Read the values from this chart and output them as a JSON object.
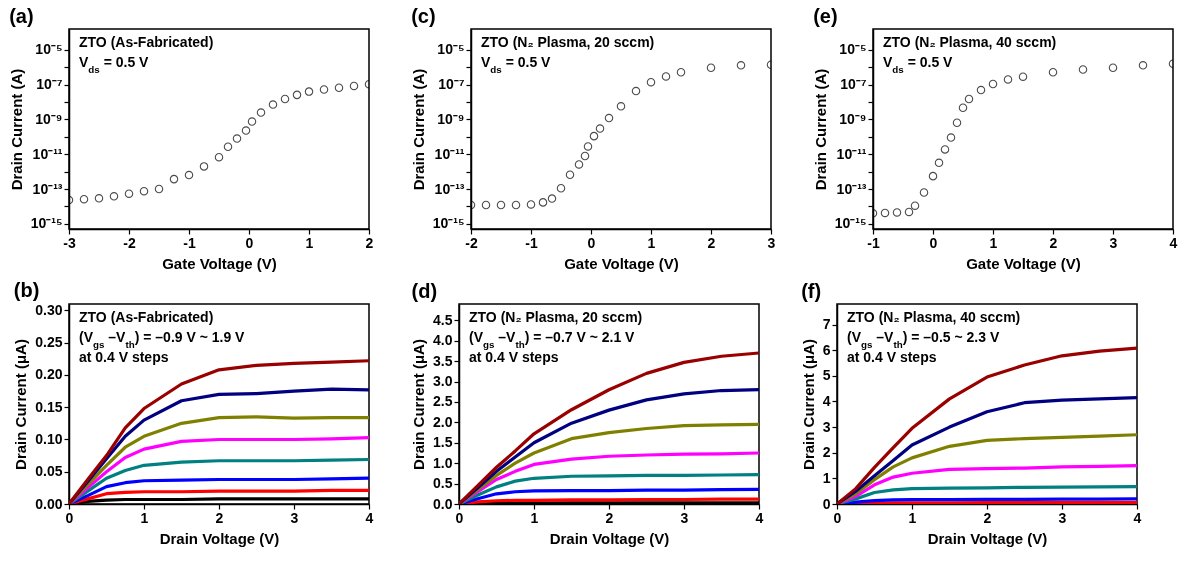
{
  "chart_data": [
    {
      "type": "scatter",
      "title": "(a)",
      "xlabel": "Gate Voltage (V)",
      "ylabel": "Drain Current (A)",
      "annotations": [
        "ZTO (As-Fabricated)",
        "V$_{ds}$ = 0.5 V"
      ],
      "log": true,
      "marker": "circle",
      "xlim": [
        -3,
        2
      ],
      "xticks": [
        -3,
        -2,
        -1,
        0,
        1,
        2
      ],
      "ylim": [
        5e-16,
        0.00016
      ],
      "yticks": [
        {
          "value": 1e-15,
          "label": "10⁻¹⁵"
        },
        {
          "value": 1e-14,
          "label": null
        },
        {
          "value": 1e-13,
          "label": "10⁻¹³"
        },
        {
          "value": 1e-12,
          "label": null
        },
        {
          "value": 1e-11,
          "label": "10⁻¹¹"
        },
        {
          "value": 1e-10,
          "label": null
        },
        {
          "value": 1e-09,
          "label": "10⁻⁹"
        },
        {
          "value": 1e-08,
          "label": null
        },
        {
          "value": 1e-07,
          "label": "10⁻⁷"
        },
        {
          "value": 1e-06,
          "label": null
        },
        {
          "value": 1e-05,
          "label": "10⁻⁵"
        }
      ],
      "series": [
        {
          "color": "#000000",
          "x": [
            -3,
            -2.75,
            -2.5,
            -2.25,
            -2,
            -1.75,
            -1.5,
            -1.25,
            -1,
            -0.75,
            -0.5,
            -0.35,
            -0.2,
            -0.05,
            0.05,
            0.2,
            0.4,
            0.6,
            0.8,
            1,
            1.25,
            1.5,
            1.75,
            2
          ],
          "values": [
            2.3e-14,
            2.6e-14,
            2.9e-14,
            3.8e-14,
            5.4e-14,
            7.5e-14,
            1e-13,
            3.7e-13,
            6.3e-13,
            2e-12,
            6.8e-12,
            2.7e-11,
            8e-11,
            2.3e-10,
            7.6e-10,
            2.5e-09,
            7.2e-09,
            1.5e-08,
            2.6e-08,
            4e-08,
            5.3e-08,
            6.7e-08,
            8.5e-08,
            1.07e-07
          ]
        }
      ]
    },
    {
      "type": "scatter",
      "title": "(c)",
      "xlabel": "Gate Voltage (V)",
      "ylabel": "Drain Current (A)",
      "annotations": [
        "ZTO (N₂ Plasma, 20 sccm)",
        "V$_{ds}$ = 0.5 V"
      ],
      "log": true,
      "marker": "circle",
      "xlim": [
        -2,
        3
      ],
      "xticks": [
        -2,
        -1,
        0,
        1,
        2,
        3
      ],
      "ylim": [
        5e-16,
        0.00016
      ],
      "yticks": [
        {
          "value": 1e-15,
          "label": "10⁻¹⁵"
        },
        {
          "value": 1e-14,
          "label": null
        },
        {
          "value": 1e-13,
          "label": "10⁻¹³"
        },
        {
          "value": 1e-12,
          "label": null
        },
        {
          "value": 1e-11,
          "label": "10⁻¹¹"
        },
        {
          "value": 1e-10,
          "label": null
        },
        {
          "value": 1e-09,
          "label": "10⁻⁹"
        },
        {
          "value": 1e-08,
          "label": null
        },
        {
          "value": 1e-07,
          "label": "10⁻⁷"
        },
        {
          "value": 1e-06,
          "label": null
        },
        {
          "value": 1e-05,
          "label": "10⁻⁵"
        }
      ],
      "series": [
        {
          "color": "#000000",
          "x": [
            -2,
            -1.75,
            -1.5,
            -1.25,
            -1,
            -0.8,
            -0.65,
            -0.5,
            -0.35,
            -0.2,
            -0.1,
            -0.05,
            0.05,
            0.15,
            0.3,
            0.5,
            0.75,
            1,
            1.25,
            1.5,
            2,
            2.5,
            3
          ],
          "values": [
            1.2e-14,
            1.2e-14,
            1.2e-14,
            1.2e-14,
            1.3e-14,
            1.7e-14,
            2.8e-14,
            1.1e-13,
            6.6e-13,
            2.6e-12,
            7.9e-12,
            2.8e-11,
            1.1e-10,
            3e-10,
            1.2e-09,
            5.7e-09,
            4.3e-08,
            1.4e-07,
            3e-07,
            5.2e-07,
            9.4e-07,
            1.3e-06,
            1.4e-06
          ]
        }
      ]
    },
    {
      "type": "scatter",
      "title": "(e)",
      "xlabel": "Gate Voltage (V)",
      "ylabel": "Drain Current (A)",
      "annotations": [
        "ZTO (N₂ Plasma, 40 sccm)",
        "V$_{ds}$ = 0.5 V"
      ],
      "log": true,
      "marker": "circle",
      "xlim": [
        -1,
        4
      ],
      "xticks": [
        -1,
        0,
        1,
        2,
        3,
        4
      ],
      "ylim": [
        5e-16,
        0.00016
      ],
      "yticks": [
        {
          "value": 1e-15,
          "label": "10⁻¹⁵"
        },
        {
          "value": 1e-14,
          "label": null
        },
        {
          "value": 1e-13,
          "label": "10⁻¹³"
        },
        {
          "value": 1e-12,
          "label": null
        },
        {
          "value": 1e-11,
          "label": "10⁻¹¹"
        },
        {
          "value": 1e-10,
          "label": null
        },
        {
          "value": 1e-09,
          "label": "10⁻⁹"
        },
        {
          "value": 1e-08,
          "label": null
        },
        {
          "value": 1e-07,
          "label": "10⁻⁷"
        },
        {
          "value": 1e-06,
          "label": null
        },
        {
          "value": 1e-05,
          "label": "10⁻⁵"
        }
      ],
      "series": [
        {
          "color": "#000000",
          "x": [
            -1,
            -0.8,
            -0.6,
            -0.4,
            -0.3,
            -0.15,
            0,
            0.1,
            0.2,
            0.3,
            0.4,
            0.5,
            0.6,
            0.8,
            1,
            1.25,
            1.5,
            2,
            2.5,
            3,
            3.5,
            4
          ],
          "values": [
            4e-15,
            4.2e-15,
            4.5e-15,
            4.8e-15,
            1.1e-14,
            6.3e-14,
            5.5e-13,
            3.2e-12,
            1.9e-11,
            9.1e-11,
            6.5e-10,
            4.7e-09,
            1.5e-08,
            4.9e-08,
            1.1e-07,
            2e-07,
            2.9e-07,
            5.2e-07,
            7.5e-07,
            9.4e-07,
            1.3e-06,
            1.6e-06
          ]
        }
      ]
    },
    {
      "type": "line",
      "title": "(b)",
      "xlabel": "Drain Voltage (V)",
      "ylabel": "Drain Current (μA)",
      "annotations": [
        "ZTO (As-Fabricated)",
        "(V$_{gs}$ –V$_{th}$) = –0.9 V ~ 1.9 V",
        "at 0.4 V steps"
      ],
      "xlim": [
        0,
        4
      ],
      "xticks": [
        0,
        1,
        2,
        3,
        4
      ],
      "ylim": [
        0,
        0.31
      ],
      "yticks": [
        {
          "value": 0,
          "label": "0.00"
        },
        0.05,
        {
          "value": 0.1,
          "label": "0.10"
        },
        0.15,
        {
          "value": 0.2,
          "label": "0.20"
        },
        0.25,
        {
          "value": 0.3,
          "label": "0.30"
        }
      ],
      "x": [
        0,
        0.25,
        0.5,
        0.75,
        1,
        1.5,
        2,
        2.5,
        3,
        3.5,
        4
      ],
      "series": [
        {
          "color": "#000000",
          "values": [
            0,
            0.004,
            0.006,
            0.007,
            0.007,
            0.007,
            0.008,
            0.008,
            0.008,
            0.008,
            0.008
          ]
        },
        {
          "color": "#ff0000",
          "values": [
            0,
            0.008,
            0.016,
            0.018,
            0.019,
            0.019,
            0.02,
            0.02,
            0.02,
            0.021,
            0.021
          ]
        },
        {
          "color": "#0000ff",
          "values": [
            0,
            0.013,
            0.027,
            0.033,
            0.036,
            0.037,
            0.038,
            0.038,
            0.038,
            0.039,
            0.04
          ]
        },
        {
          "color": "#008080",
          "values": [
            0,
            0.02,
            0.04,
            0.052,
            0.06,
            0.065,
            0.067,
            0.067,
            0.067,
            0.068,
            0.069
          ]
        },
        {
          "color": "#ff00ff",
          "values": [
            0,
            0.025,
            0.05,
            0.072,
            0.085,
            0.097,
            0.1,
            0.1,
            0.1,
            0.101,
            0.103
          ]
        },
        {
          "color": "#808000",
          "values": [
            0,
            0.03,
            0.06,
            0.088,
            0.105,
            0.125,
            0.134,
            0.135,
            0.133,
            0.134,
            0.134
          ]
        },
        {
          "color": "#000080",
          "values": [
            0,
            0.035,
            0.07,
            0.105,
            0.13,
            0.16,
            0.17,
            0.171,
            0.175,
            0.178,
            0.177
          ]
        },
        {
          "color": "#990000",
          "values": [
            0,
            0.038,
            0.075,
            0.118,
            0.148,
            0.186,
            0.208,
            0.215,
            0.218,
            0.22,
            0.222
          ]
        }
      ]
    },
    {
      "type": "line",
      "title": "(d)",
      "xlabel": "Drain Voltage (V)",
      "ylabel": "Drain Current (μA)",
      "annotations": [
        "ZTO (N₂ Plasma, 20 sccm)",
        "(V$_{gs}$ –V$_{th}$) = –0.7 V ~ 2.1 V",
        "at 0.4 V steps"
      ],
      "xlim": [
        0,
        4
      ],
      "xticks": [
        0,
        1,
        2,
        3,
        4
      ],
      "ylim": [
        0,
        4.9
      ],
      "yticks": [
        {
          "value": 0,
          "label": "0.0"
        },
        0.5,
        {
          "value": 1,
          "label": "1.0"
        },
        1.5,
        {
          "value": 2,
          "label": "2.0"
        },
        2.5,
        {
          "value": 3,
          "label": "3.0"
        },
        3.5,
        {
          "value": 4,
          "label": "4.0"
        },
        4.5
      ],
      "x": [
        0,
        0.25,
        0.5,
        0.75,
        1,
        1.5,
        2,
        2.5,
        3,
        3.5,
        4
      ],
      "series": [
        {
          "color": "#000000",
          "values": [
            0,
            0.01,
            0.02,
            0.02,
            0.02,
            0.03,
            0.03,
            0.03,
            0.03,
            0.03,
            0.03
          ]
        },
        {
          "color": "#ff0000",
          "values": [
            0,
            0.05,
            0.08,
            0.09,
            0.09,
            0.1,
            0.1,
            0.11,
            0.11,
            0.12,
            0.12
          ]
        },
        {
          "color": "#0000ff",
          "values": [
            0,
            0.13,
            0.25,
            0.3,
            0.32,
            0.33,
            0.33,
            0.34,
            0.34,
            0.35,
            0.36
          ]
        },
        {
          "color": "#008080",
          "values": [
            0,
            0.22,
            0.42,
            0.56,
            0.63,
            0.68,
            0.69,
            0.7,
            0.7,
            0.71,
            0.72
          ]
        },
        {
          "color": "#ff00ff",
          "values": [
            0,
            0.3,
            0.6,
            0.8,
            0.97,
            1.1,
            1.17,
            1.2,
            1.22,
            1.23,
            1.25
          ]
        },
        {
          "color": "#808000",
          "values": [
            0,
            0.35,
            0.7,
            1.0,
            1.25,
            1.6,
            1.75,
            1.85,
            1.92,
            1.94,
            1.95
          ]
        },
        {
          "color": "#000080",
          "values": [
            0,
            0.4,
            0.8,
            1.15,
            1.5,
            1.98,
            2.3,
            2.55,
            2.7,
            2.78,
            2.8
          ]
        },
        {
          "color": "#990000",
          "values": [
            0,
            0.45,
            0.9,
            1.3,
            1.72,
            2.31,
            2.8,
            3.2,
            3.47,
            3.62,
            3.7
          ]
        }
      ]
    },
    {
      "type": "line",
      "title": "(f)",
      "xlabel": "Drain Voltage (V)",
      "ylabel": "Drain Current (μA)",
      "annotations": [
        "ZTO (N₂ Plasma, 40 sccm)",
        "(V$_{gs}$ –V$_{th}$) = –0.5 ~ 2.3 V",
        "at 0.4 V steps"
      ],
      "xlim": [
        0,
        4
      ],
      "xticks": [
        0,
        1,
        2,
        3,
        4
      ],
      "ylim": [
        0,
        7.8
      ],
      "yticks": [
        0,
        1,
        2,
        3,
        4,
        5,
        6,
        7
      ],
      "x": [
        0,
        0.25,
        0.5,
        0.75,
        1,
        1.5,
        2,
        2.5,
        3,
        3.5,
        4
      ],
      "series": [
        {
          "color": "#ff0000",
          "values": [
            0,
            0.02,
            0.03,
            0.04,
            0.04,
            0.04,
            0.05,
            0.05,
            0.05,
            0.05,
            0.05
          ]
        },
        {
          "color": "#0000ff",
          "values": [
            0,
            0.07,
            0.13,
            0.16,
            0.17,
            0.17,
            0.18,
            0.18,
            0.19,
            0.19,
            0.2
          ]
        },
        {
          "color": "#008080",
          "values": [
            0,
            0.2,
            0.45,
            0.55,
            0.6,
            0.62,
            0.63,
            0.65,
            0.66,
            0.67,
            0.68
          ]
        },
        {
          "color": "#ff00ff",
          "values": [
            0,
            0.3,
            0.75,
            1.05,
            1.2,
            1.35,
            1.38,
            1.4,
            1.45,
            1.47,
            1.5
          ]
        },
        {
          "color": "#808000",
          "values": [
            0,
            0.4,
            0.95,
            1.45,
            1.8,
            2.25,
            2.48,
            2.55,
            2.6,
            2.65,
            2.7
          ]
        },
        {
          "color": "#000080",
          "values": [
            0,
            0.5,
            1.1,
            1.7,
            2.3,
            3.0,
            3.6,
            3.95,
            4.05,
            4.1,
            4.15
          ]
        },
        {
          "color": "#990000",
          "values": [
            0,
            0.6,
            1.43,
            2.2,
            2.95,
            4.1,
            4.95,
            5.42,
            5.78,
            5.96,
            6.08
          ]
        }
      ]
    }
  ]
}
